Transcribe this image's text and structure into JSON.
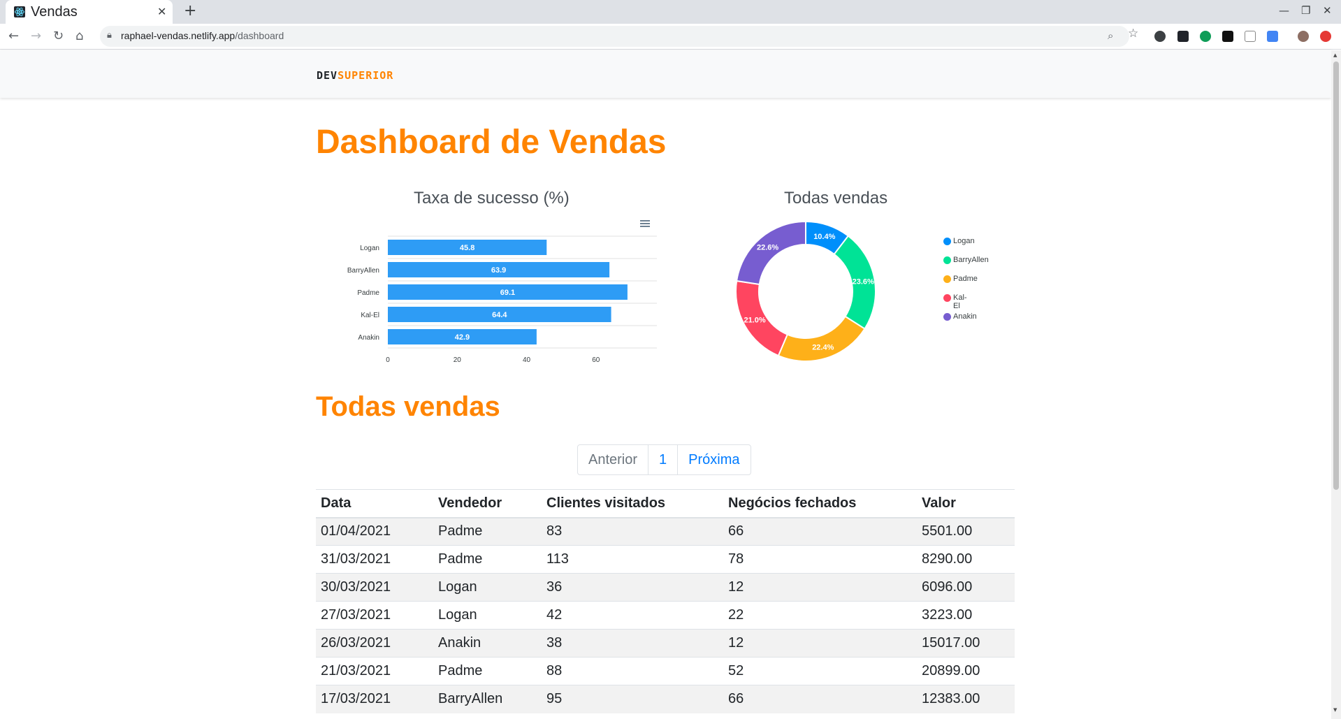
{
  "browser": {
    "tab_title": "Vendas",
    "url_host": "raphael-vendas.netlify.app",
    "url_path": "/dashboard"
  },
  "navbar": {
    "logo_part1": "DEV",
    "logo_part2": "SUPERIOR"
  },
  "page": {
    "title": "Dashboard de Vendas",
    "section_title": "Todas vendas"
  },
  "chart_data": [
    {
      "type": "bar",
      "orientation": "horizontal",
      "title": "Taxa de sucesso (%)",
      "categories": [
        "Logan",
        "BarryAllen",
        "Padme",
        "Kal-El",
        "Anakin"
      ],
      "values": [
        45.8,
        63.9,
        69.1,
        64.4,
        42.9
      ],
      "xlim": [
        0,
        80
      ],
      "ticks": [
        "0",
        "20",
        "40",
        "60",
        "80"
      ],
      "bar_color": "#2e9cf5",
      "grid": true
    },
    {
      "type": "pie",
      "variant": "donut",
      "title": "Todas vendas",
      "labels": [
        "Logan",
        "BarryAllen",
        "Padme",
        "Kal-El",
        "Anakin"
      ],
      "values": [
        10.4,
        23.6,
        22.4,
        21.0,
        22.6
      ],
      "value_labels": [
        "10.4%",
        "23.6%",
        "22.4%",
        "21.0%",
        "22.6%"
      ],
      "colors": [
        "#008ffb",
        "#00e396",
        "#feb019",
        "#ff4560",
        "#775dd0"
      ],
      "legend": "right"
    }
  ],
  "pagination": {
    "prev": "Anterior",
    "current": "1",
    "next": "Próxima"
  },
  "table": {
    "headers": [
      "Data",
      "Vendedor",
      "Clientes visitados",
      "Negócios fechados",
      "Valor"
    ],
    "rows": [
      [
        "01/04/2021",
        "Padme",
        "83",
        "66",
        "5501.00"
      ],
      [
        "31/03/2021",
        "Padme",
        "113",
        "78",
        "8290.00"
      ],
      [
        "30/03/2021",
        "Logan",
        "36",
        "12",
        "6096.00"
      ],
      [
        "27/03/2021",
        "Logan",
        "42",
        "22",
        "3223.00"
      ],
      [
        "26/03/2021",
        "Anakin",
        "38",
        "12",
        "15017.00"
      ],
      [
        "21/03/2021",
        "Padme",
        "88",
        "52",
        "20899.00"
      ],
      [
        "17/03/2021",
        "BarryAllen",
        "95",
        "66",
        "12383.00"
      ]
    ]
  }
}
